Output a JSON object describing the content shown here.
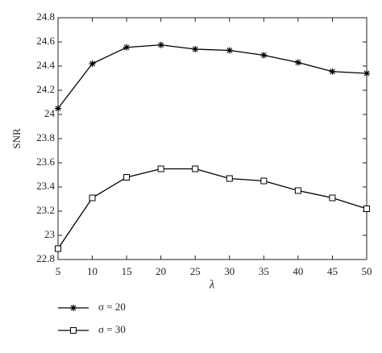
{
  "chart_data": {
    "type": "line",
    "x_label": "λ",
    "y_label": "SNR",
    "x": [
      5,
      10,
      15,
      20,
      25,
      30,
      35,
      40,
      45,
      50
    ],
    "series": [
      {
        "name": "σ = 20",
        "color": "#000000",
        "marker": "star",
        "values": [
          24.05,
          24.42,
          24.555,
          24.575,
          24.54,
          24.53,
          24.49,
          24.43,
          24.355,
          24.34
        ]
      },
      {
        "name": "σ = 30",
        "color": "#000000",
        "marker": "square",
        "values": [
          22.89,
          23.31,
          23.48,
          23.55,
          23.55,
          23.47,
          23.45,
          23.37,
          23.31,
          23.22
        ]
      }
    ],
    "xlim": [
      5,
      50
    ],
    "xticks": [
      5,
      10,
      15,
      20,
      25,
      30,
      35,
      40,
      45,
      50
    ],
    "ylim": [
      22.8,
      24.8
    ],
    "yticks": [
      22.8,
      23,
      23.2,
      23.4,
      23.6,
      23.8,
      24,
      24.2,
      24.4,
      24.6,
      24.8
    ],
    "grid": false
  }
}
